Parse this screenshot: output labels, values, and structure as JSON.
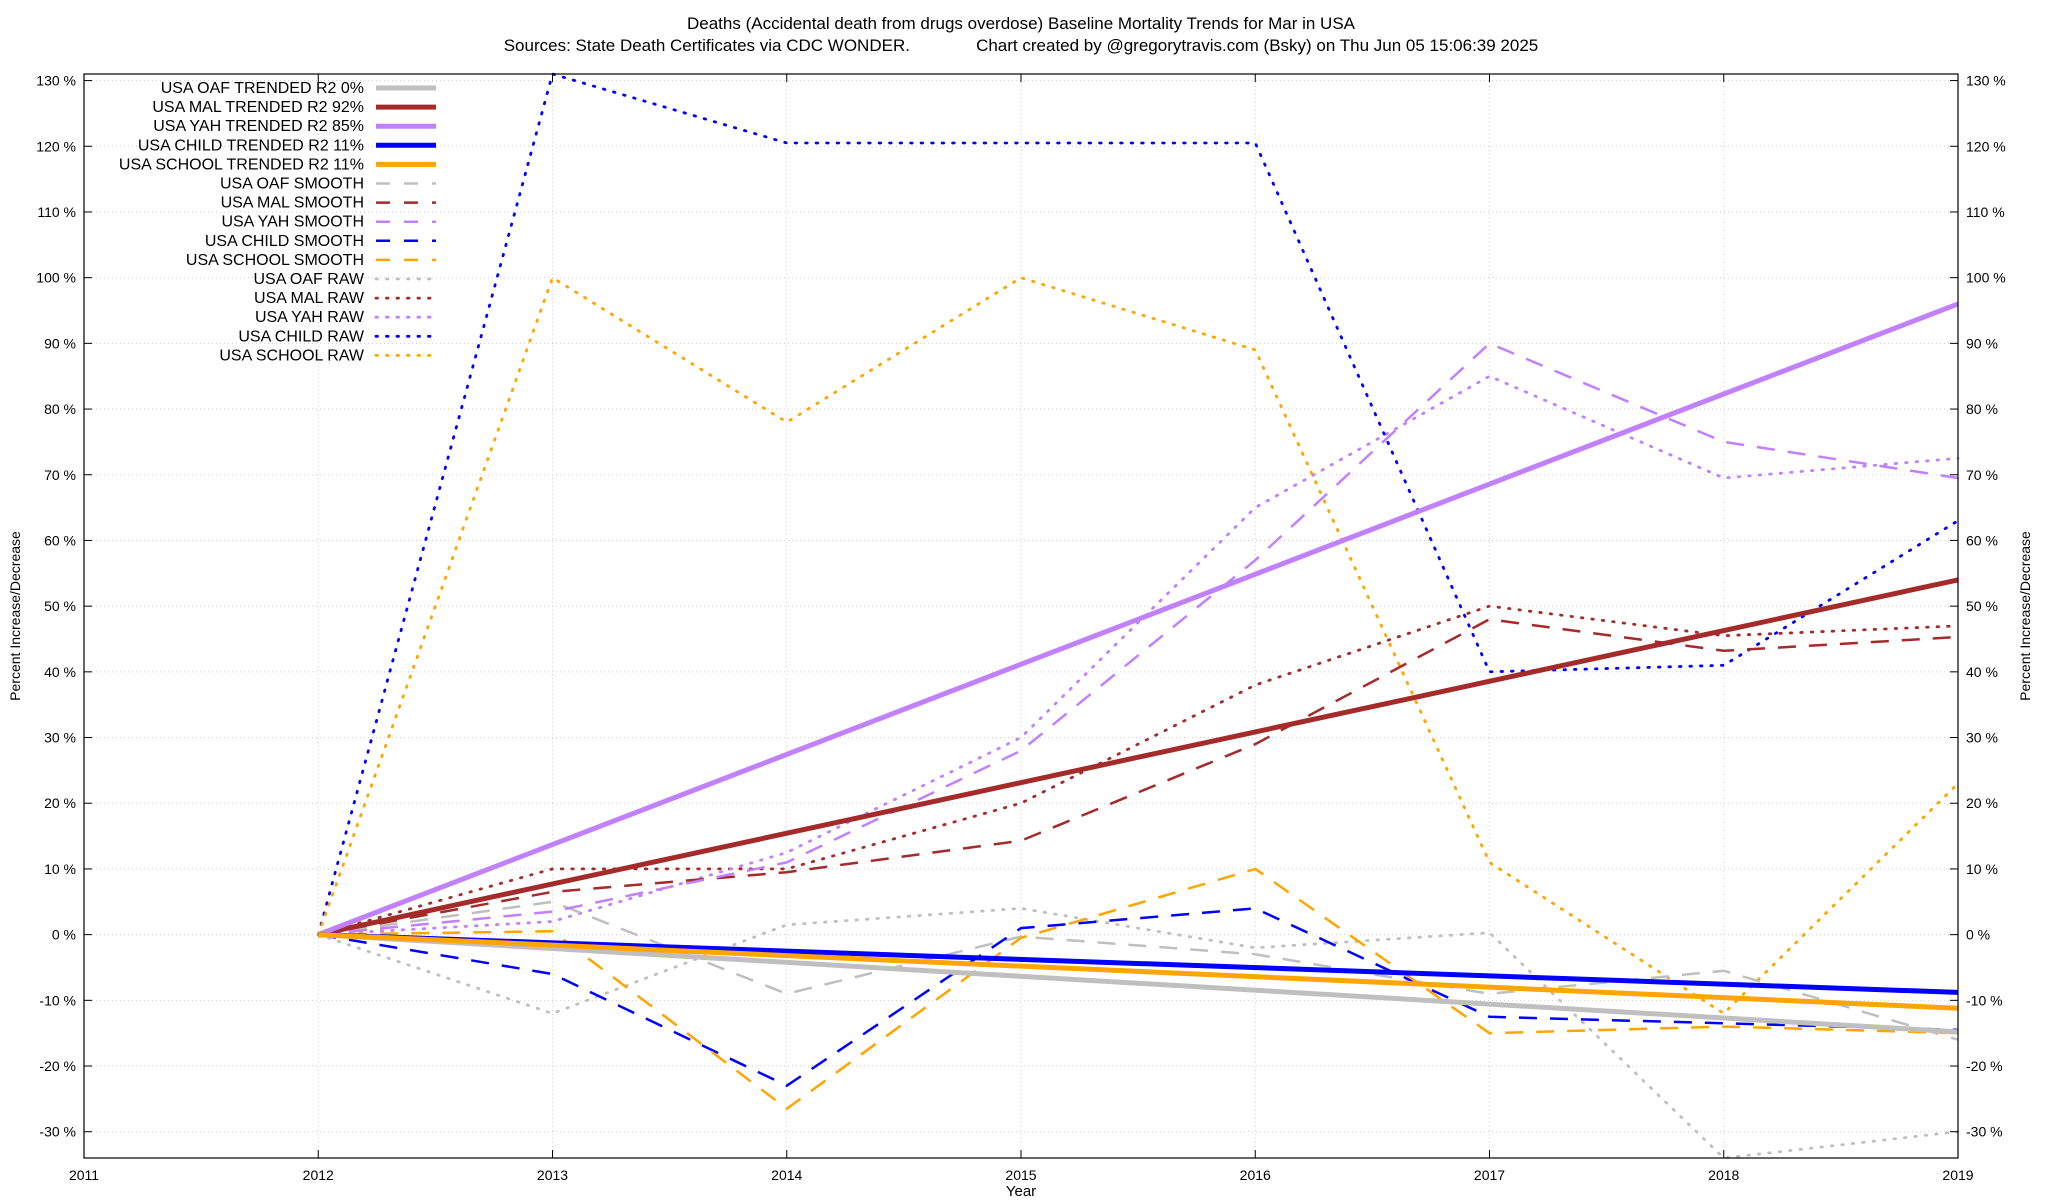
{
  "chart_data": {
    "type": "line",
    "title": "Deaths (Accidental death from drugs overdose)  Baseline Mortality Trends for Mar in USA",
    "subtitle": "Sources: State Death Certificates via CDC WONDER.              Chart created by @gregorytravis.com (Bsky) on Thu Jun 05 15:06:39 2025",
    "xlabel": "Year",
    "ylabel": "Percent Increase/Decrease",
    "y2label": "Percent Increase/Decrease",
    "xlim": [
      2011,
      2019
    ],
    "ylim": [
      -34,
      131
    ],
    "x_ticks": [
      "2011",
      "2012",
      "2013",
      "2014",
      "2015",
      "2016",
      "2017",
      "2018",
      "2019"
    ],
    "y_ticks": [
      "130 %",
      "120 %",
      "110 %",
      "100 %",
      "90 %",
      "80 %",
      "70 %",
      "60 %",
      "50 %",
      "40 %",
      "30 %",
      "20 %",
      "10 %",
      "0 %",
      "-10 %",
      "-20 %",
      "-30 %"
    ],
    "grid": true,
    "legend_position": "top-left",
    "series": [
      {
        "name": "USA OAF TRENDED R2   0%",
        "style": "solid",
        "color": "#bfbfbf",
        "x": [
          2012,
          2019
        ],
        "values": [
          0,
          -14.8
        ]
      },
      {
        "name": "USA MAL TRENDED R2  92%",
        "style": "solid",
        "color": "#a52a2a",
        "x": [
          2012,
          2019
        ],
        "values": [
          0,
          54
        ]
      },
      {
        "name": "USA YAH TRENDED R2  85%",
        "style": "solid",
        "color": "#c080ff",
        "x": [
          2012,
          2019
        ],
        "values": [
          0,
          96
        ]
      },
      {
        "name": "USA CHILD TRENDED R2  11%",
        "style": "solid",
        "color": "#0000ff",
        "x": [
          2012,
          2019
        ],
        "values": [
          0,
          -8.8
        ]
      },
      {
        "name": "USA SCHOOL TRENDED R2  11%",
        "style": "solid",
        "color": "#ffa500",
        "x": [
          2012,
          2019
        ],
        "values": [
          0,
          -11.2
        ]
      },
      {
        "name": "USA OAF SMOOTH",
        "style": "dashed",
        "color": "#bfbfbf",
        "x": [
          2012,
          2013,
          2014,
          2015,
          2016,
          2017,
          2018,
          2019
        ],
        "values": [
          0,
          5,
          -9,
          -0.3,
          -3,
          -9,
          -5.5,
          -16
        ]
      },
      {
        "name": "USA MAL SMOOTH",
        "style": "dashed",
        "color": "#a52a2a",
        "x": [
          2012,
          2013,
          2014,
          2015,
          2016,
          2017,
          2018,
          2019
        ],
        "values": [
          0,
          6.5,
          9.5,
          14.3,
          29,
          48,
          43.2,
          45.3
        ]
      },
      {
        "name": "USA YAH SMOOTH",
        "style": "dashed",
        "color": "#c080ff",
        "x": [
          2012,
          2013,
          2014,
          2015,
          2016,
          2017,
          2018,
          2019
        ],
        "values": [
          0,
          3.5,
          11,
          28,
          57,
          90,
          75,
          69.5
        ]
      },
      {
        "name": "USA CHILD SMOOTH",
        "style": "dashed",
        "color": "#0000ff",
        "x": [
          2012,
          2013,
          2014,
          2015,
          2016,
          2017,
          2018,
          2019
        ],
        "values": [
          0,
          -6,
          -23,
          1,
          4,
          -12.5,
          -13.5,
          -14.5
        ]
      },
      {
        "name": "USA SCHOOL SMOOTH",
        "style": "dashed",
        "color": "#ffa500",
        "x": [
          2012,
          2013,
          2014,
          2015,
          2016,
          2017,
          2018,
          2019
        ],
        "values": [
          0,
          0.5,
          -26.5,
          -0.5,
          10,
          -15,
          -14,
          -15
        ]
      },
      {
        "name": "USA OAF RAW",
        "style": "dotted",
        "color": "#bfbfbf",
        "x": [
          2012,
          2013,
          2014,
          2015,
          2016,
          2017,
          2018,
          2019
        ],
        "values": [
          0,
          -12,
          1.5,
          4,
          -2,
          0.3,
          -34,
          -30
        ]
      },
      {
        "name": "USA MAL RAW",
        "style": "dotted",
        "color": "#a52a2a",
        "x": [
          2012,
          2013,
          2014,
          2015,
          2016,
          2017,
          2018,
          2019
        ],
        "values": [
          0,
          10,
          10,
          20,
          38,
          50,
          45.5,
          47
        ]
      },
      {
        "name": "USA YAH RAW",
        "style": "dotted",
        "color": "#c080ff",
        "x": [
          2012,
          2013,
          2014,
          2015,
          2016,
          2017,
          2018,
          2019
        ],
        "values": [
          0,
          2,
          12.5,
          30,
          65,
          85,
          69.5,
          72.5
        ]
      },
      {
        "name": "USA CHILD RAW",
        "style": "dotted",
        "color": "#0000ff",
        "x": [
          2012,
          2013,
          2014,
          2015,
          2016,
          2017,
          2018,
          2019
        ],
        "values": [
          0,
          131,
          120.5,
          120.5,
          120.5,
          40,
          41,
          63
        ]
      },
      {
        "name": "USA SCHOOL RAW",
        "style": "dotted",
        "color": "#ffa500",
        "x": [
          2012,
          2013,
          2014,
          2015,
          2016,
          2017,
          2018,
          2019
        ],
        "values": [
          0,
          100,
          78,
          100,
          89,
          11,
          -12,
          23
        ]
      }
    ]
  }
}
